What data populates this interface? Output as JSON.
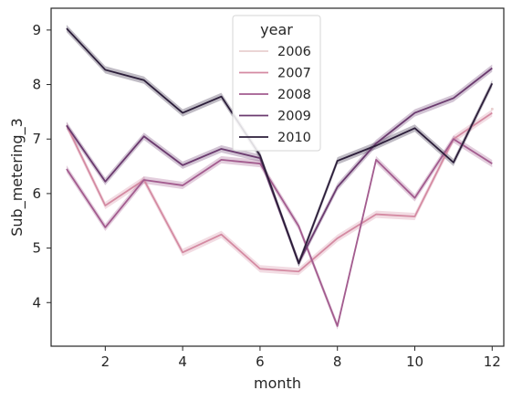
{
  "chart_data": {
    "type": "line",
    "xlabel": "month",
    "ylabel": "Sub_metering_3",
    "xlim": [
      0.6,
      12.3
    ],
    "ylim": [
      3.2,
      9.4
    ],
    "xticks": [
      2,
      4,
      6,
      8,
      10,
      12
    ],
    "yticks": [
      4,
      5,
      6,
      7,
      8,
      9
    ],
    "grid": false,
    "legend": {
      "title": "year",
      "placement": "top-center"
    },
    "x": [
      1,
      2,
      3,
      4,
      5,
      6,
      7,
      8,
      9,
      10,
      11,
      12
    ],
    "series": [
      {
        "name": "2006",
        "color": "#e8cfcf",
        "values": [
          null,
          null,
          null,
          null,
          null,
          null,
          null,
          null,
          null,
          null,
          null,
          7.55
        ]
      },
      {
        "name": "2007",
        "color": "#d48aa2",
        "values": [
          7.25,
          5.78,
          6.25,
          4.92,
          5.25,
          4.62,
          4.57,
          5.18,
          5.62,
          5.58,
          7.0,
          7.48
        ]
      },
      {
        "name": "2008",
        "color": "#a35c8f",
        "values": [
          6.45,
          5.38,
          6.25,
          6.15,
          6.62,
          6.55,
          5.4,
          3.57,
          6.62,
          5.92,
          7.0,
          6.55
        ]
      },
      {
        "name": "2009",
        "color": "#6b3b6f",
        "values": [
          7.25,
          6.22,
          7.05,
          6.52,
          6.82,
          6.65,
          4.73,
          6.12,
          6.92,
          7.48,
          7.75,
          8.3
        ]
      },
      {
        "name": "2010",
        "color": "#2c1e3a",
        "values": [
          9.03,
          8.27,
          8.08,
          7.48,
          7.78,
          6.7,
          4.72,
          6.6,
          6.88,
          7.2,
          6.57,
          8.02
        ]
      }
    ]
  }
}
